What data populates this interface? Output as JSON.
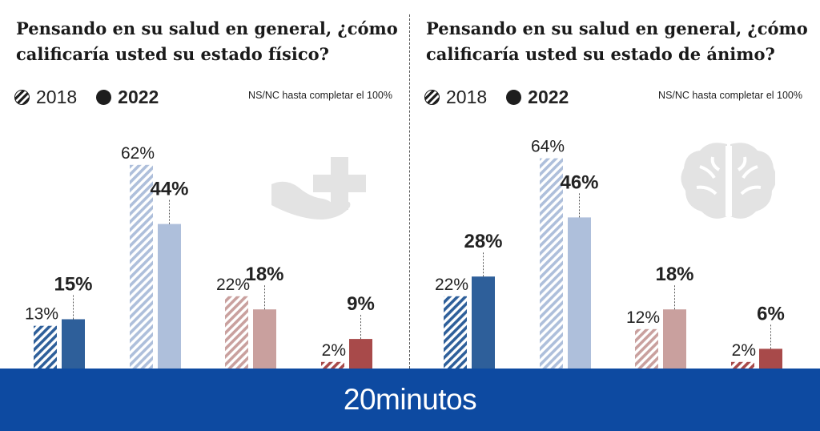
{
  "chart_data": [
    {
      "type": "bar",
      "title": "Pensando en su salud en general, ¿cómo calificaría usted su estado físico?",
      "legend_note": "NS/NC hasta completar el 100%",
      "value_suffix": "%",
      "ylim": [
        0,
        70
      ],
      "series": [
        {
          "name": "2018",
          "values": [
            13,
            62,
            22,
            2
          ]
        },
        {
          "name": "2022",
          "values": [
            15,
            44,
            18,
            9
          ]
        }
      ],
      "category_colors": [
        "#2e5f9a",
        "#aebfdb",
        "#c9a09e",
        "#a84a4a"
      ],
      "icon": "hand-cross-icon"
    },
    {
      "type": "bar",
      "title": "Pensando en su salud en general, ¿cómo calificaría usted su estado de ánimo?",
      "legend_note": "NS/NC hasta completar el 100%",
      "value_suffix": "%",
      "ylim": [
        0,
        70
      ],
      "series": [
        {
          "name": "2018",
          "values": [
            22,
            64,
            12,
            2
          ]
        },
        {
          "name": "2022",
          "values": [
            28,
            46,
            18,
            6
          ]
        }
      ],
      "category_colors": [
        "#2e5f9a",
        "#aebfdb",
        "#c9a09e",
        "#a84a4a"
      ],
      "icon": "brain-icon"
    }
  ],
  "legend": {
    "label_2018": "2018",
    "label_2022": "2022"
  },
  "footer": {
    "brand": "20minutos",
    "background": "#0d4aa1"
  }
}
